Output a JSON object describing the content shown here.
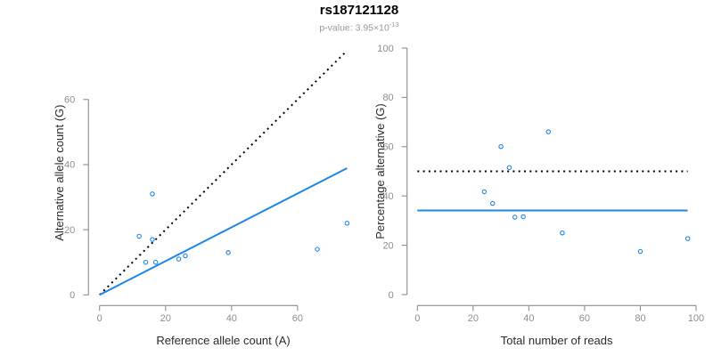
{
  "header": {
    "title": "rs187121128",
    "subtitle_prefix": "p-value: 3.95×10",
    "subtitle_exponent": "-13"
  },
  "colors": {
    "accent_blue": "#1E87E5",
    "dotted_black": "#000000",
    "axis_gray": "#8e8e8e",
    "axis_title_dark": "#2b2b2b"
  },
  "chart_data": [
    {
      "type": "scatter",
      "panel": "left",
      "xlabel": "Reference allele count (A)",
      "ylabel": "Alternative allele count (G)",
      "xlim": [
        0,
        75
      ],
      "ylim": [
        0,
        75
      ],
      "xticks": [
        0,
        20,
        40,
        60
      ],
      "yticks": [
        0,
        20,
        40,
        60
      ],
      "grid": false,
      "point_color": "#1E87E5",
      "points": [
        [
          16,
          31
        ],
        [
          12,
          18
        ],
        [
          16,
          17
        ],
        [
          14,
          10
        ],
        [
          17,
          10
        ],
        [
          24,
          11
        ],
        [
          26,
          12
        ],
        [
          39,
          13
        ],
        [
          66,
          14
        ],
        [
          75,
          22
        ]
      ],
      "lines": [
        {
          "name": "identity-line",
          "style": "dotted",
          "color": "#000000",
          "x1": 0,
          "y1": 0,
          "x2": 75,
          "y2": 75
        },
        {
          "name": "fit-line",
          "style": "solid",
          "color": "#1E87E5",
          "x1": 0,
          "y1": 0,
          "x2": 75,
          "y2": 38.9
        }
      ]
    },
    {
      "type": "scatter",
      "panel": "right",
      "xlabel": "Total number of reads",
      "ylabel": "Percentage alternative (G)",
      "xlim": [
        0,
        100
      ],
      "ylim": [
        0,
        100
      ],
      "xticks": [
        0,
        20,
        40,
        60,
        80,
        100
      ],
      "yticks": [
        0,
        20,
        40,
        60,
        80,
        100
      ],
      "grid": false,
      "point_color": "#1E87E5",
      "points": [
        [
          24,
          41.7
        ],
        [
          27,
          37.0
        ],
        [
          30,
          60.0
        ],
        [
          33,
          51.5
        ],
        [
          35,
          31.4
        ],
        [
          38,
          31.6
        ],
        [
          47,
          66.0
        ],
        [
          52,
          25.0
        ],
        [
          80,
          17.5
        ],
        [
          97,
          22.7
        ]
      ],
      "lines": [
        {
          "name": "expected-50pct-line",
          "style": "dotted",
          "color": "#000000",
          "x1": 0,
          "y1": 50,
          "x2": 97,
          "y2": 50
        },
        {
          "name": "mean-percentage-line",
          "style": "solid",
          "color": "#1E87E5",
          "x1": 0,
          "y1": 34.1,
          "x2": 97,
          "y2": 34.1
        }
      ]
    }
  ]
}
